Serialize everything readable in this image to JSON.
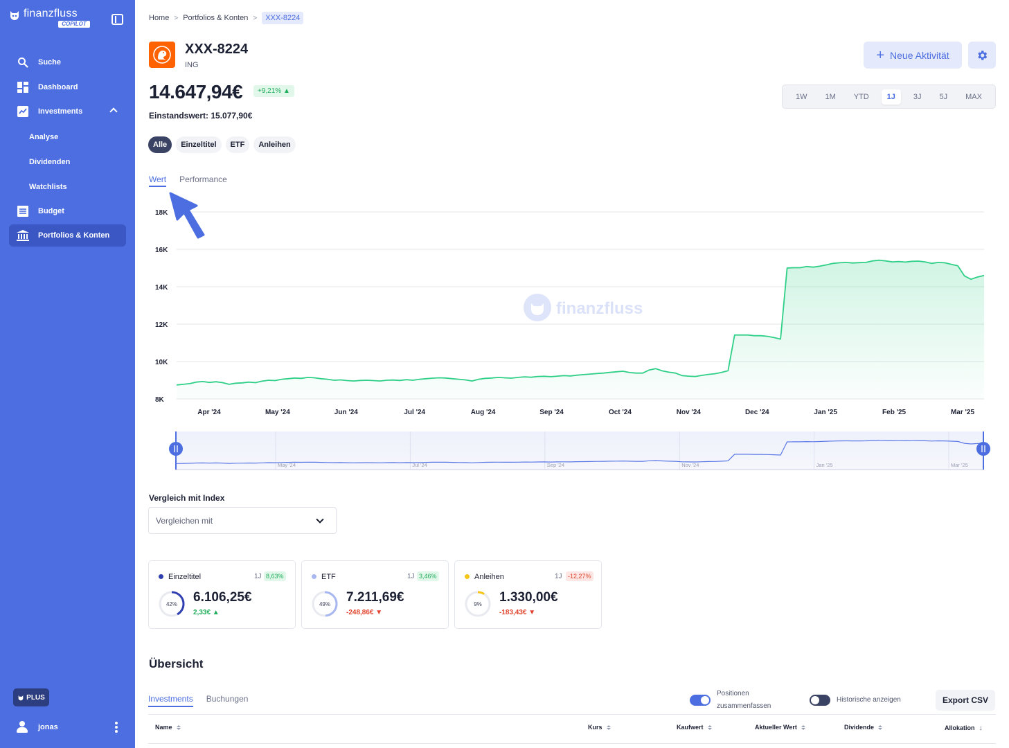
{
  "app": {
    "brand": "finanzfluss",
    "badge": "COPILOT"
  },
  "sidebar": {
    "items": [
      {
        "label": "Suche",
        "icon": "search-icon"
      },
      {
        "label": "Dashboard",
        "icon": "dashboard-icon"
      },
      {
        "label": "Investments",
        "icon": "chart-icon",
        "expanded": true
      },
      {
        "label": "Analyse"
      },
      {
        "label": "Dividenden"
      },
      {
        "label": "Watchlists"
      },
      {
        "label": "Budget",
        "icon": "budget-icon"
      },
      {
        "label": "Portfolios & Konten",
        "icon": "bank-icon",
        "active": true
      }
    ],
    "plus_label": "PLUS",
    "user_name": "jonas"
  },
  "breadcrumb": {
    "items": [
      "Home",
      "Portfolios & Konten",
      "XXX-8224"
    ]
  },
  "account": {
    "title": "XXX-8224",
    "bank": "ING",
    "value": "14.647,94€",
    "change_pct": "+9,21% ▲",
    "cost_basis": "Einstandswert: 15.077,90€"
  },
  "actions": {
    "new_activity": "Neue Aktivität"
  },
  "range_tabs": {
    "items": [
      "1W",
      "1M",
      "YTD",
      "1J",
      "3J",
      "5J",
      "MAX"
    ],
    "active": "1J"
  },
  "filters": {
    "items": [
      "Alle",
      "Einzeltitel",
      "ETF",
      "Anleihen"
    ],
    "active": "Alle"
  },
  "view_tabs": {
    "items": [
      "Wert",
      "Performance"
    ],
    "active": "Wert"
  },
  "colors": {
    "sidebar": "#4c6ee0",
    "accent": "#4c6ee0",
    "positive": "#1fae5b",
    "negative": "#e0452d",
    "line": "#2ecf86",
    "brand_ing": "#ff6200"
  },
  "chart_data": {
    "type": "area",
    "watermark": "finanzfluss",
    "ylim": [
      8000,
      18000
    ],
    "y_ticks": [
      8000,
      10000,
      12000,
      14000,
      16000,
      18000
    ],
    "y_tick_labels": [
      "8K",
      "10K",
      "12K",
      "14K",
      "16K",
      "18K"
    ],
    "x_tick_labels": [
      "Apr '24",
      "May '24",
      "Jun '24",
      "Jul '24",
      "Aug '24",
      "Sep '24",
      "Oct '24",
      "Nov '24",
      "Dec '24",
      "Jan '25",
      "Feb '25",
      "Mar '25"
    ],
    "navigator_labels": [
      "May '24",
      "Jul '24",
      "Sep '24",
      "Nov '24",
      "Jan '25",
      "Mar '25"
    ],
    "grid": true,
    "series": [
      {
        "values": [
          8750,
          8780,
          8820,
          8900,
          8930,
          8880,
          8920,
          8870,
          8780,
          8840,
          8860,
          8900,
          8870,
          8950,
          9000,
          8980,
          9050,
          9080,
          9120,
          9100,
          9150,
          9130,
          9080,
          9050,
          9000,
          9020,
          8980,
          8960,
          8990,
          9000,
          8980,
          8960,
          9000,
          9010,
          8990,
          9030,
          9000,
          9050,
          9080,
          9110,
          9130,
          9120,
          9080,
          9050,
          9020,
          8960,
          9050,
          9100,
          9120,
          9150,
          9130,
          9110,
          9150,
          9180,
          9160,
          9200,
          9210,
          9190,
          9220,
          9250,
          9230,
          9270,
          9300,
          9330,
          9360,
          9380,
          9420,
          9450,
          9480,
          9410,
          9380,
          9380,
          9550,
          9620,
          9500,
          9430,
          9380,
          9250,
          9220,
          9200,
          9260,
          9310,
          9350,
          9420,
          9510,
          11420,
          11420,
          11420,
          11380,
          11380,
          11350,
          11280,
          11200,
          15000,
          15020,
          15020,
          15080,
          15050,
          15100,
          15170,
          15250,
          15280,
          15300,
          15270,
          15290,
          15300,
          15380,
          15420,
          15380,
          15330,
          15350,
          15320,
          15360,
          15370,
          15330,
          15250,
          15300,
          15280,
          15200,
          15120,
          14580,
          14400,
          14520,
          14600
        ]
      }
    ]
  },
  "compare": {
    "label": "Vergleich mit Index",
    "placeholder": "Vergleichen mit"
  },
  "cards": [
    {
      "name": "Einzeltitel",
      "period": "1J",
      "pct": "8,63%",
      "trend": "pos",
      "share": 42,
      "share_label": "42%",
      "value": "6.106,25€",
      "delta": "2,33€ ▲",
      "color": "#2f3fb0"
    },
    {
      "name": "ETF",
      "period": "1J",
      "pct": "3,46%",
      "trend": "pos",
      "share": 49,
      "share_label": "49%",
      "value": "7.211,69€",
      "delta": "-248,86€ ▼",
      "delta_trend": "neg",
      "color": "#a9b7f0"
    },
    {
      "name": "Anleihen",
      "period": "1J",
      "pct": "-12,27%",
      "trend": "neg",
      "share": 9,
      "share_label": "9%",
      "value": "1.330,00€",
      "delta": "-183,43€ ▼",
      "delta_trend": "neg",
      "color": "#f5c518"
    }
  ],
  "overview": {
    "title": "Übersicht",
    "tabs": [
      "Investments",
      "Buchungen"
    ],
    "active_tab": "Investments",
    "toggle_merge_line1": "Positionen",
    "toggle_merge_line2": "zusammenfassen",
    "toggle_merge_on": true,
    "toggle_history": "Historische anzeigen",
    "toggle_history_on": false,
    "export_label": "Export CSV",
    "columns": [
      "Name",
      "Kurs",
      "Kaufwert",
      "Aktueller Wert",
      "Dividende",
      "Allokation"
    ]
  }
}
